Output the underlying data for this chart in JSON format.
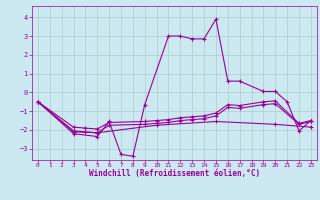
{
  "xlabel": "Windchill (Refroidissement éolien,°C)",
  "bg_color": "#cce8f0",
  "line_color": "#990099",
  "grid_color": "#aacccc",
  "xlim": [
    -0.5,
    23.5
  ],
  "ylim": [
    -3.6,
    4.6
  ],
  "xticks": [
    0,
    1,
    2,
    3,
    4,
    5,
    6,
    7,
    8,
    9,
    10,
    11,
    12,
    13,
    14,
    15,
    16,
    17,
    18,
    19,
    20,
    21,
    22,
    23
  ],
  "yticks": [
    -3,
    -2,
    -1,
    0,
    1,
    2,
    3,
    4
  ],
  "line1_x": [
    0,
    3,
    5,
    6,
    7,
    8,
    9,
    11,
    12,
    13,
    14,
    15,
    16,
    17,
    19,
    20,
    21,
    22,
    23
  ],
  "line1_y": [
    -0.5,
    -2.2,
    -2.35,
    -1.55,
    -3.3,
    -3.4,
    -0.65,
    3.0,
    3.0,
    2.85,
    2.85,
    3.9,
    0.6,
    0.6,
    0.05,
    0.05,
    -0.5,
    -2.05,
    -1.5
  ],
  "line2_x": [
    0,
    3,
    4,
    5,
    6,
    9,
    10,
    11,
    12,
    13,
    14,
    15,
    16,
    17,
    19,
    20,
    22,
    23
  ],
  "line2_y": [
    -0.5,
    -1.85,
    -1.9,
    -1.95,
    -1.6,
    -1.55,
    -1.5,
    -1.45,
    -1.35,
    -1.3,
    -1.25,
    -1.1,
    -0.65,
    -0.7,
    -0.5,
    -0.45,
    -1.65,
    -1.5
  ],
  "line3_x": [
    0,
    3,
    4,
    5,
    6,
    9,
    10,
    11,
    12,
    13,
    14,
    15,
    16,
    17,
    19,
    20,
    22,
    23
  ],
  "line3_y": [
    -0.5,
    -2.05,
    -2.1,
    -2.15,
    -1.75,
    -1.7,
    -1.65,
    -1.6,
    -1.5,
    -1.45,
    -1.4,
    -1.25,
    -0.8,
    -0.85,
    -0.65,
    -0.6,
    -1.7,
    -1.55
  ],
  "line4_x": [
    0,
    3,
    5,
    10,
    15,
    20,
    23
  ],
  "line4_y": [
    -0.5,
    -2.1,
    -2.15,
    -1.75,
    -1.55,
    -1.7,
    -1.85
  ]
}
